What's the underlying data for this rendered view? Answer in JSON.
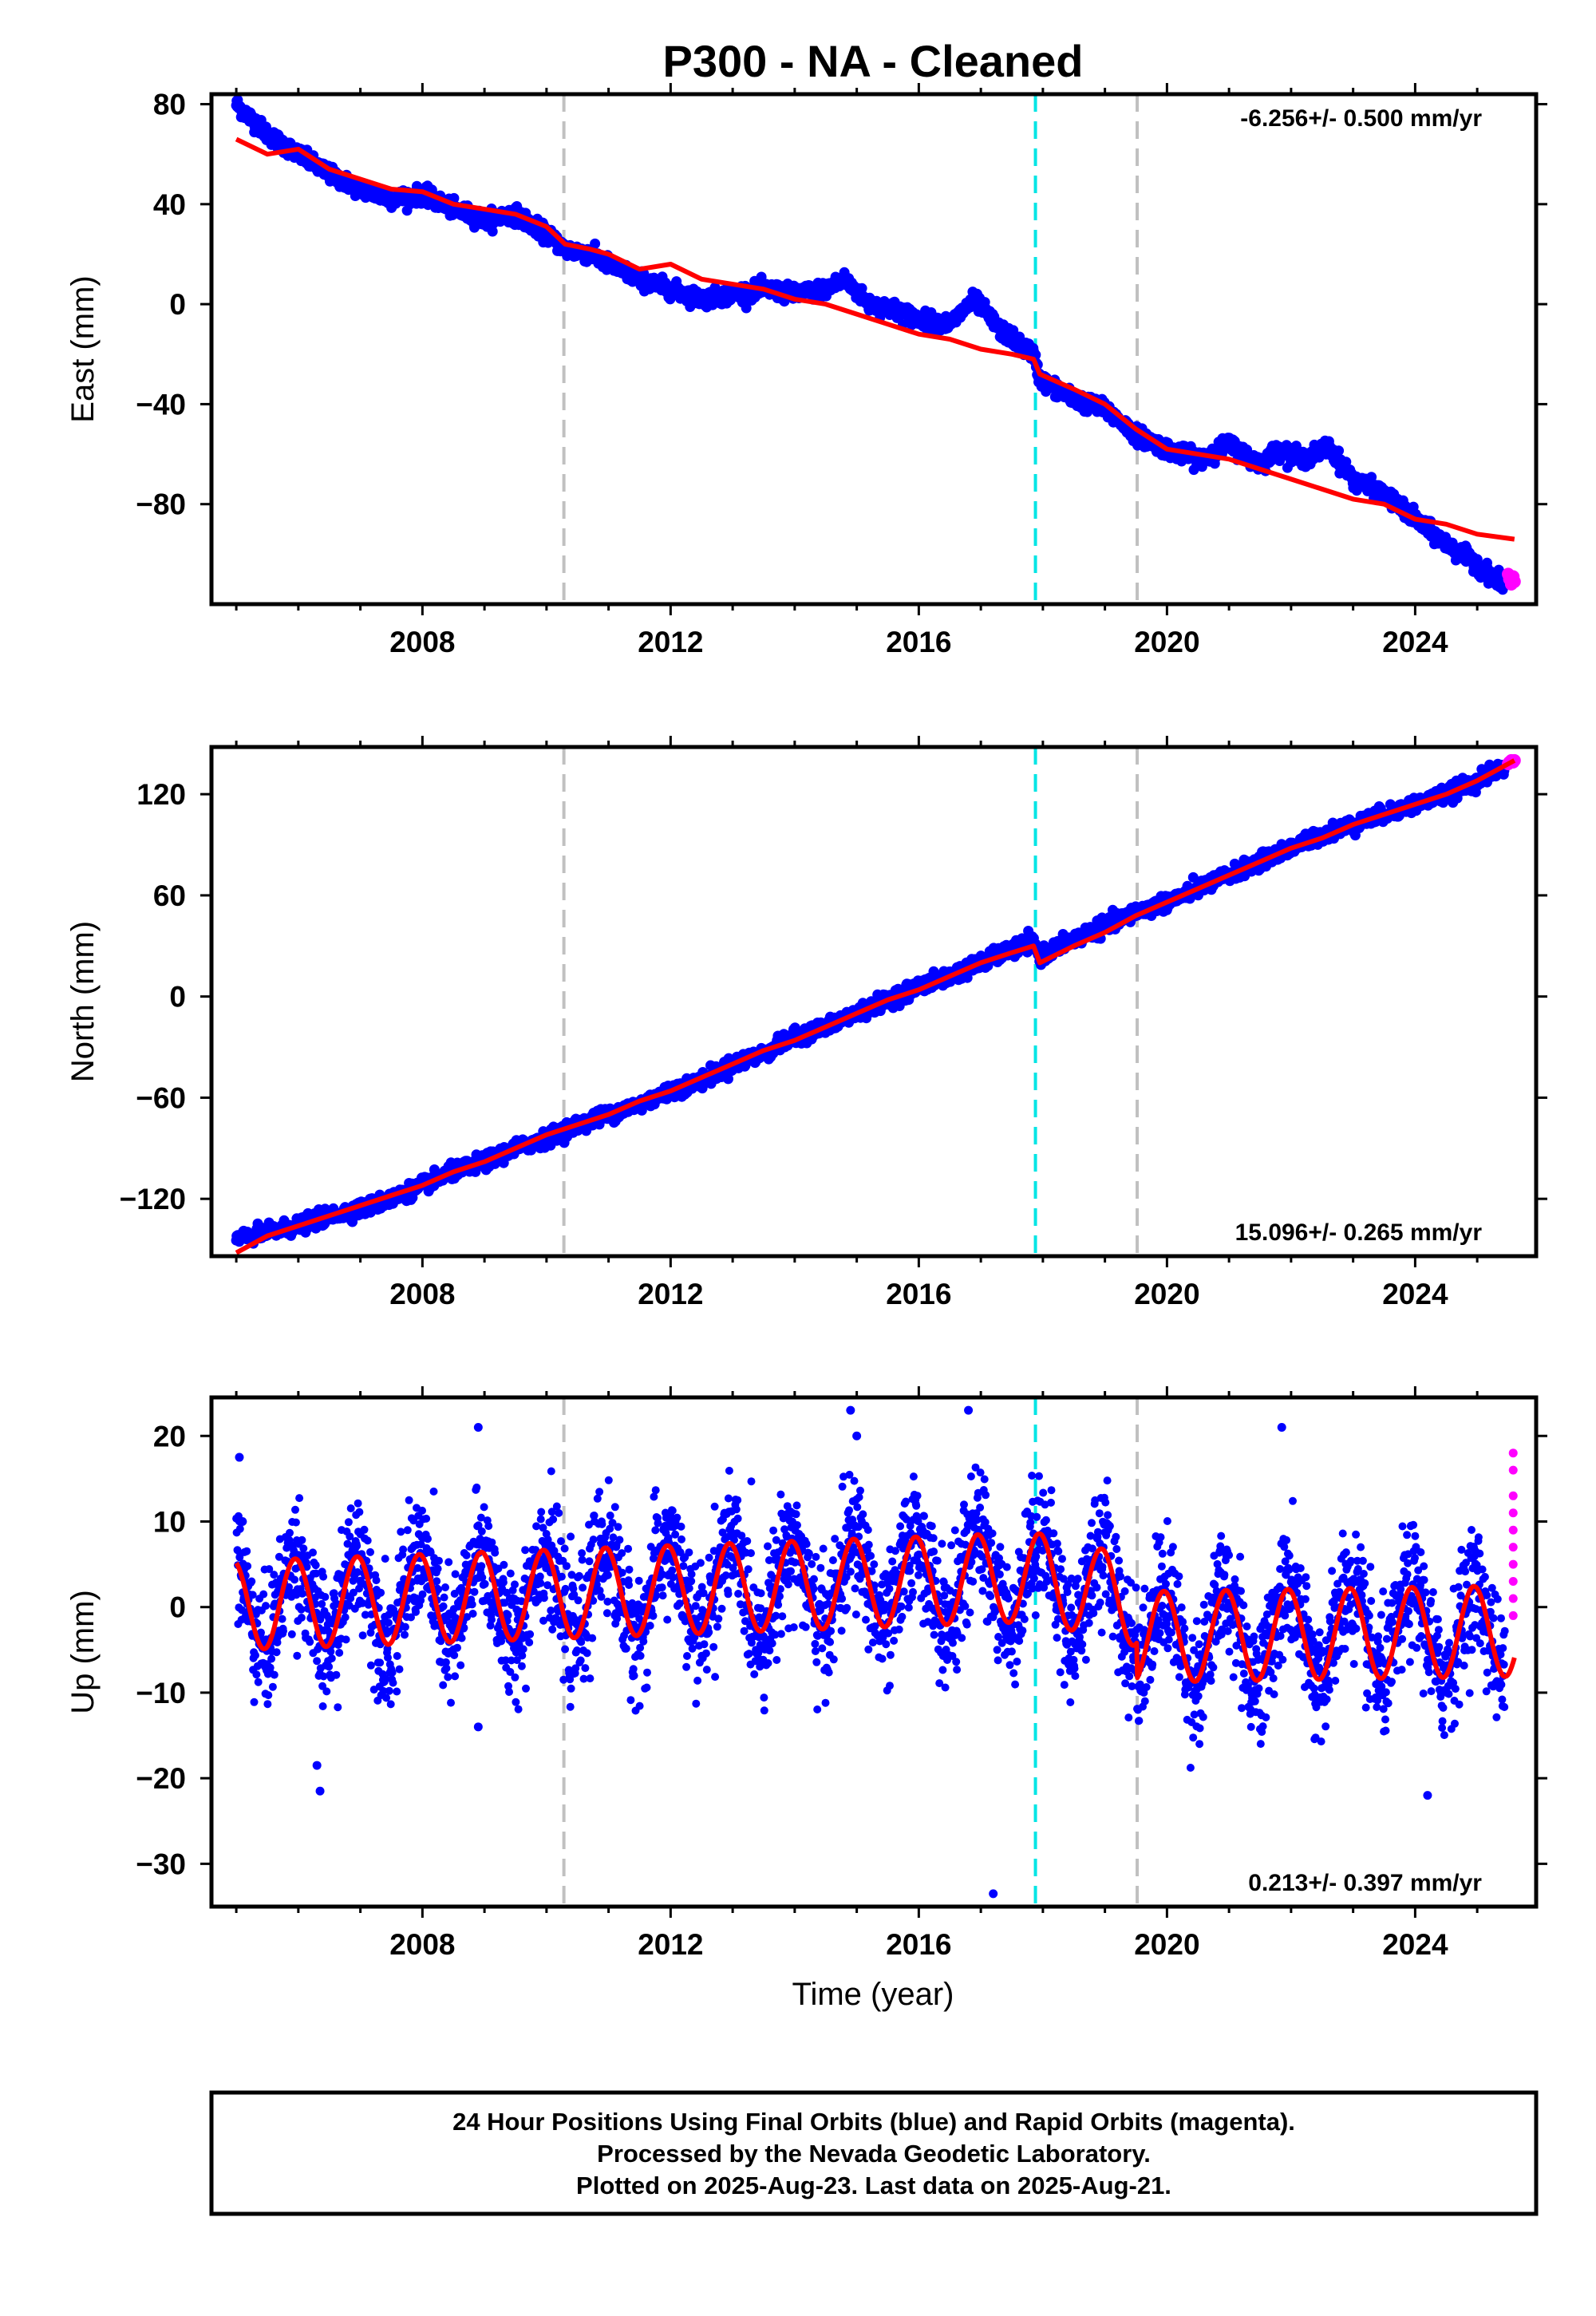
{
  "title": "P300  - NA - Cleaned",
  "x_axis_label": "Time (year)",
  "caption": [
    "24 Hour Positions Using Final Orbits (blue) and Rapid Orbits (magenta).",
    "Processed by the Nevada Geodetic Laboratory.",
    "Plotted on 2025-Aug-23. Last data on 2025-Aug-21."
  ],
  "colors": {
    "final_orbits": "#0000ff",
    "rapid_orbits": "#ff00ff",
    "model": "#ff0000",
    "event_gray": "#c0c0c0",
    "event_cyan": "#00e5e5"
  },
  "chart_data": [
    {
      "type": "scatter",
      "ylabel": "East (mm)",
      "rate": "-6.256+/- 0.500 mm/yr",
      "xlim": [
        2004.6,
        2025.95
      ],
      "ylim": [
        -120,
        84
      ],
      "xticks": [
        2008,
        2012,
        2016,
        2020,
        2024
      ],
      "yticks": [
        80,
        40,
        0,
        -40,
        -80
      ],
      "grid": false,
      "legend": "none",
      "events": [
        {
          "x": 2010.28,
          "color": "gray"
        },
        {
          "x": 2017.88,
          "color": "cyan"
        },
        {
          "x": 2019.52,
          "color": "gray"
        }
      ],
      "series": [
        {
          "role": "final-orbits",
          "x": [
            2005.0,
            2005.5,
            2006.0,
            2006.5,
            2007.0,
            2007.5,
            2008.0,
            2008.5,
            2009.0,
            2009.5,
            2010.0,
            2010.3,
            2010.7,
            2011.0,
            2011.5,
            2012.0,
            2012.5,
            2013.0,
            2013.5,
            2014.0,
            2014.5,
            2014.8,
            2015.2,
            2015.6,
            2016.0,
            2016.5,
            2016.9,
            2017.3,
            2017.85,
            2017.95,
            2018.5,
            2019.0,
            2019.5,
            2020.0,
            2020.5,
            2021.0,
            2021.5,
            2021.8,
            2022.2,
            2022.6,
            2023.0,
            2023.5,
            2024.0,
            2024.5,
            2025.0,
            2025.4
          ],
          "y": [
            80,
            68,
            60,
            52,
            46,
            42,
            44,
            38,
            34,
            36,
            28,
            22,
            20,
            16,
            10,
            6,
            2,
            4,
            6,
            4,
            6,
            10,
            0,
            -2,
            -6,
            -8,
            2,
            -10,
            -20,
            -30,
            -38,
            -42,
            -52,
            -58,
            -62,
            -56,
            -64,
            -58,
            -62,
            -57,
            -70,
            -76,
            -86,
            -96,
            -104,
            -112
          ]
        },
        {
          "role": "rapid-orbits",
          "x": [
            2025.5,
            2025.52,
            2025.55,
            2025.58,
            2025.6
          ],
          "y": [
            -108,
            -110,
            -112,
            -109,
            -111
          ]
        },
        {
          "role": "model",
          "x": [
            2005.0,
            2005.5,
            2006.0,
            2006.5,
            2007.0,
            2007.5,
            2008.0,
            2008.5,
            2009.0,
            2009.5,
            2010.0,
            2010.3,
            2010.7,
            2011.0,
            2011.5,
            2012.0,
            2012.5,
            2013.0,
            2013.5,
            2014.0,
            2014.5,
            2015.0,
            2015.5,
            2016.0,
            2016.5,
            2017.0,
            2017.5,
            2017.85,
            2017.95,
            2018.5,
            2019.0,
            2019.5,
            2020.0,
            2020.5,
            2021.0,
            2021.5,
            2022.0,
            2022.5,
            2023.0,
            2023.5,
            2024.0,
            2024.5,
            2025.0,
            2025.6
          ],
          "y": [
            66,
            60,
            62,
            54,
            50,
            46,
            45,
            40,
            38,
            36,
            31,
            24,
            22,
            20,
            14,
            16,
            10,
            8,
            6,
            2,
            0,
            -4,
            -8,
            -12,
            -14,
            -18,
            -20,
            -22,
            -28,
            -34,
            -40,
            -50,
            -58,
            -60,
            -62,
            -66,
            -70,
            -74,
            -78,
            -80,
            -86,
            -88,
            -92,
            -94
          ]
        }
      ]
    },
    {
      "type": "scatter",
      "ylabel": "North (mm)",
      "rate": "15.096+/- 0.265 mm/yr",
      "xlim": [
        2004.6,
        2025.95
      ],
      "ylim": [
        -154,
        148
      ],
      "xticks": [
        2008,
        2012,
        2016,
        2020,
        2024
      ],
      "yticks": [
        120,
        60,
        0,
        -60,
        -120
      ],
      "grid": false,
      "legend": "none",
      "events": [
        {
          "x": 2010.28,
          "color": "gray"
        },
        {
          "x": 2017.88,
          "color": "cyan"
        },
        {
          "x": 2019.52,
          "color": "gray"
        }
      ],
      "series": [
        {
          "role": "final-orbits",
          "x": [
            2005.0,
            2005.5,
            2006.0,
            2006.5,
            2007.0,
            2007.5,
            2008.0,
            2008.5,
            2009.0,
            2009.5,
            2010.0,
            2010.5,
            2011.0,
            2011.5,
            2012.0,
            2012.5,
            2013.0,
            2013.5,
            2014.0,
            2014.5,
            2015.0,
            2015.5,
            2016.0,
            2016.5,
            2017.0,
            2017.5,
            2017.85,
            2017.95,
            2018.5,
            2019.0,
            2019.5,
            2020.0,
            2020.5,
            2021.0,
            2021.5,
            2022.0,
            2022.5,
            2023.0,
            2023.5,
            2024.0,
            2024.5,
            2025.0,
            2025.4
          ],
          "y": [
            -144,
            -140,
            -136,
            -130,
            -126,
            -120,
            -112,
            -104,
            -98,
            -90,
            -84,
            -76,
            -70,
            -64,
            -56,
            -50,
            -40,
            -34,
            -24,
            -18,
            -10,
            -2,
            6,
            12,
            20,
            28,
            32,
            24,
            34,
            42,
            50,
            56,
            64,
            72,
            80,
            88,
            96,
            102,
            108,
            114,
            120,
            128,
            136
          ]
        },
        {
          "role": "rapid-orbits",
          "x": [
            2025.5,
            2025.52,
            2025.55,
            2025.58,
            2025.6
          ],
          "y": [
            138,
            139,
            140,
            139,
            140
          ]
        },
        {
          "role": "model",
          "x": [
            2005.0,
            2005.5,
            2006.0,
            2006.5,
            2007.0,
            2007.5,
            2008.0,
            2008.5,
            2009.0,
            2009.5,
            2010.0,
            2010.5,
            2011.0,
            2011.5,
            2012.0,
            2012.5,
            2013.0,
            2013.5,
            2014.0,
            2014.5,
            2015.0,
            2015.5,
            2016.0,
            2016.5,
            2017.0,
            2017.5,
            2017.85,
            2017.95,
            2018.5,
            2019.0,
            2019.5,
            2020.0,
            2020.5,
            2021.0,
            2021.5,
            2022.0,
            2022.5,
            2023.0,
            2023.5,
            2024.0,
            2024.5,
            2025.0,
            2025.6
          ],
          "y": [
            -152,
            -142,
            -136,
            -130,
            -124,
            -118,
            -112,
            -104,
            -98,
            -90,
            -82,
            -76,
            -70,
            -62,
            -56,
            -48,
            -40,
            -32,
            -26,
            -18,
            -10,
            -2,
            4,
            12,
            20,
            26,
            30,
            20,
            30,
            38,
            48,
            56,
            64,
            72,
            80,
            88,
            94,
            102,
            108,
            114,
            120,
            128,
            140
          ]
        }
      ]
    },
    {
      "type": "scatter",
      "ylabel": "Up (mm)",
      "rate": "0.213+/- 0.397 mm/yr",
      "xlabel": "Time (year)",
      "xlim": [
        2004.6,
        2025.95
      ],
      "ylim": [
        -35,
        24.5
      ],
      "xticks": [
        2008,
        2012,
        2016,
        2020,
        2024
      ],
      "yticks": [
        20,
        10,
        0,
        -10,
        -20,
        -30
      ],
      "grid": false,
      "legend": "none",
      "events": [
        {
          "x": 2010.28,
          "color": "gray"
        },
        {
          "x": 2017.88,
          "color": "cyan"
        },
        {
          "x": 2019.52,
          "color": "gray"
        }
      ],
      "series": [
        {
          "role": "final-orbits-outliers",
          "x": [
            2005.05,
            2005.1,
            2006.3,
            2006.35,
            2008.9,
            2008.9,
            2014.9,
            2015.0,
            2016.8,
            2017.2,
            2021.85,
            2024.2
          ],
          "y": [
            17.5,
            10,
            -18.5,
            -21.5,
            21,
            -14,
            23,
            20,
            23,
            -33.5,
            21,
            -22
          ]
        },
        {
          "role": "rapid-orbits",
          "x": [
            2025.58,
            2025.58,
            2025.58,
            2025.58,
            2025.58,
            2025.58,
            2025.58,
            2025.58,
            2025.58,
            2025.58
          ],
          "y": [
            18,
            16,
            13,
            11,
            9,
            7,
            5,
            3,
            1,
            -1
          ]
        },
        {
          "role": "model",
          "seasonal": {
            "segments": [
              {
                "x0": 2005.0,
                "x1": 2019.52,
                "offset_at": [
                  [
                    2005.0,
                    0.2
                  ],
                  [
                    2017.88,
                    3.5
                  ],
                  [
                    2019.52,
                    0.6
                  ]
                ],
                "amplitude": 5.2
              },
              {
                "x0": 2019.52,
                "x1": 2025.6,
                "offset_at": [
                  [
                    2019.52,
                    -3.5
                  ],
                  [
                    2025.6,
                    -2.8
                  ]
                ],
                "amplitude": 5.3
              }
            ],
            "period_years": 1.0,
            "phase_year": 2005.2
          }
        }
      ]
    }
  ]
}
